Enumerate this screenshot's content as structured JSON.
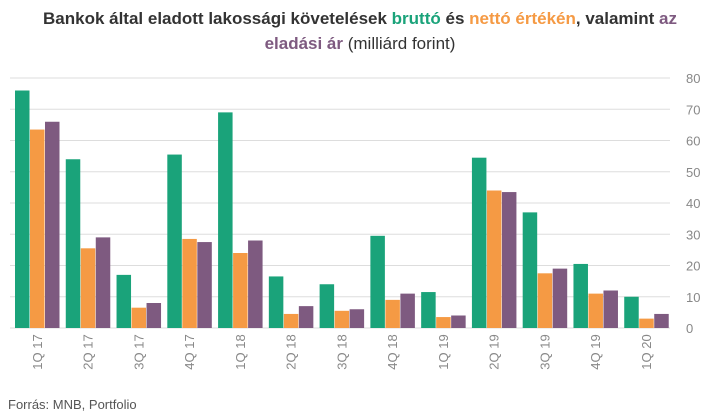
{
  "title": {
    "part1": "Bankok által eladott lakossági követelések ",
    "word_brutto": "bruttó",
    "part2": " és ",
    "word_netto": "nettó értékén",
    "part3": ", valamint ",
    "word_az": "az",
    "word_eladasi": "eladási ár",
    "part4": " (milliárd forint)"
  },
  "source": "Forrás: MNB, Portfolio",
  "colors": {
    "brutto": "#1aa37a",
    "netto": "#f59a44",
    "eladasi": "#7e5a80",
    "grid": "#dddddd",
    "tick": "#888888"
  },
  "chart_data": {
    "type": "bar",
    "categories": [
      "1Q 17",
      "2Q 17",
      "3Q 17",
      "4Q 17",
      "1Q 18",
      "2Q 18",
      "3Q 18",
      "4Q 18",
      "1Q 19",
      "2Q 19",
      "3Q 19",
      "4Q 19",
      "1Q 20"
    ],
    "series": [
      {
        "name": "bruttó",
        "values": [
          76,
          54,
          17,
          55.5,
          69,
          16.5,
          14,
          29.5,
          11.5,
          54.5,
          37,
          20.5,
          10
        ]
      },
      {
        "name": "nettó értékén",
        "values": [
          63.5,
          25.5,
          6.5,
          28.5,
          24,
          4.5,
          5.5,
          9,
          3.5,
          44,
          17.5,
          11,
          3
        ]
      },
      {
        "name": "eladási ár",
        "values": [
          66,
          29,
          8,
          27.5,
          28,
          7,
          6,
          11,
          4,
          43.5,
          19,
          12,
          4.5
        ]
      }
    ],
    "ylim": [
      0,
      80
    ],
    "yticks": [
      0,
      10,
      20,
      30,
      40,
      50,
      60,
      70,
      80
    ],
    "grid": true,
    "y_axis_side": "right"
  }
}
